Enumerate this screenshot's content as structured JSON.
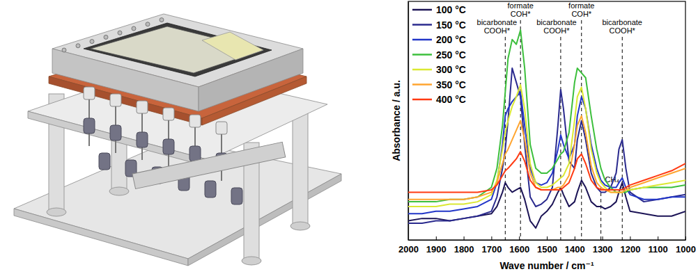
{
  "chart_data": {
    "type": "line",
    "x_label": "Wave number / cm⁻¹",
    "y_label": "Absorbance / a.u.",
    "x": [
      2000,
      1950,
      1900,
      1850,
      1800,
      1750,
      1700,
      1680,
      1660,
      1650,
      1640,
      1625,
      1610,
      1595,
      1580,
      1560,
      1540,
      1520,
      1500,
      1480,
      1460,
      1450,
      1440,
      1420,
      1400,
      1390,
      1375,
      1360,
      1340,
      1320,
      1305,
      1290,
      1270,
      1250,
      1240,
      1228,
      1215,
      1200,
      1150,
      1100,
      1050,
      1000
    ],
    "xlim": [
      2000,
      1000
    ],
    "xticks": [
      2000,
      1900,
      1800,
      1700,
      1600,
      1500,
      1400,
      1300,
      1200,
      1100,
      1000
    ],
    "ylim": [
      0,
      1
    ],
    "tick_labels": "x",
    "grid": false,
    "legend": "upper left",
    "series": [
      {
        "name": "100 °C",
        "color": "#1c1456",
        "values": [
          0.08,
          0.09,
          0.09,
          0.08,
          0.09,
          0.1,
          0.11,
          0.14,
          0.2,
          0.24,
          0.22,
          0.2,
          0.21,
          0.22,
          0.17,
          0.08,
          0.05,
          0.1,
          0.12,
          0.15,
          0.2,
          0.22,
          0.19,
          0.14,
          0.16,
          0.2,
          0.25,
          0.22,
          0.16,
          0.14,
          0.14,
          0.13,
          0.14,
          0.16,
          0.2,
          0.24,
          0.18,
          0.12,
          0.11,
          0.1,
          0.1,
          0.12
        ]
      },
      {
        "name": "150 °C",
        "color": "#2a2a8e",
        "values": [
          0.07,
          0.07,
          0.08,
          0.08,
          0.09,
          0.1,
          0.12,
          0.18,
          0.3,
          0.38,
          0.5,
          0.72,
          0.66,
          0.6,
          0.4,
          0.18,
          0.14,
          0.15,
          0.17,
          0.22,
          0.48,
          0.63,
          0.55,
          0.33,
          0.3,
          0.42,
          0.5,
          0.42,
          0.28,
          0.22,
          0.2,
          0.2,
          0.22,
          0.28,
          0.38,
          0.42,
          0.3,
          0.2,
          0.16,
          0.17,
          0.18,
          0.19
        ]
      },
      {
        "name": "200 °C",
        "color": "#2236c8",
        "values": [
          0.11,
          0.11,
          0.12,
          0.12,
          0.13,
          0.14,
          0.17,
          0.24,
          0.4,
          0.52,
          0.55,
          0.58,
          0.6,
          0.62,
          0.48,
          0.3,
          0.24,
          0.23,
          0.24,
          0.28,
          0.38,
          0.44,
          0.4,
          0.34,
          0.4,
          0.52,
          0.6,
          0.55,
          0.4,
          0.3,
          0.25,
          0.23,
          0.22,
          0.22,
          0.24,
          0.26,
          0.22,
          0.19,
          0.17,
          0.17,
          0.18,
          0.18
        ]
      },
      {
        "name": "250 °C",
        "color": "#3cbf3c",
        "values": [
          0.16,
          0.16,
          0.16,
          0.17,
          0.17,
          0.18,
          0.22,
          0.3,
          0.48,
          0.62,
          0.76,
          0.84,
          0.82,
          0.88,
          0.72,
          0.4,
          0.3,
          0.28,
          0.28,
          0.3,
          0.34,
          0.36,
          0.37,
          0.45,
          0.66,
          0.72,
          0.7,
          0.68,
          0.52,
          0.38,
          0.3,
          0.25,
          0.22,
          0.2,
          0.2,
          0.2,
          0.2,
          0.21,
          0.22,
          0.22,
          0.22,
          0.23
        ]
      },
      {
        "name": "300 °C",
        "color": "#dbe832",
        "values": [
          0.14,
          0.14,
          0.14,
          0.15,
          0.15,
          0.16,
          0.19,
          0.25,
          0.38,
          0.45,
          0.5,
          0.56,
          0.6,
          0.65,
          0.55,
          0.32,
          0.24,
          0.22,
          0.22,
          0.23,
          0.25,
          0.26,
          0.27,
          0.32,
          0.5,
          0.6,
          0.64,
          0.55,
          0.38,
          0.28,
          0.24,
          0.22,
          0.2,
          0.2,
          0.2,
          0.2,
          0.21,
          0.21,
          0.22,
          0.23,
          0.24,
          0.25
        ]
      },
      {
        "name": "350 °C",
        "color": "#ffa530",
        "values": [
          0.17,
          0.17,
          0.17,
          0.17,
          0.17,
          0.18,
          0.2,
          0.24,
          0.32,
          0.36,
          0.38,
          0.42,
          0.46,
          0.5,
          0.42,
          0.28,
          0.22,
          0.21,
          0.21,
          0.21,
          0.22,
          0.22,
          0.23,
          0.27,
          0.4,
          0.48,
          0.52,
          0.45,
          0.31,
          0.24,
          0.22,
          0.21,
          0.2,
          0.2,
          0.2,
          0.2,
          0.21,
          0.22,
          0.24,
          0.26,
          0.28,
          0.3
        ]
      },
      {
        "name": "400 °C",
        "color": "#ff3a12",
        "values": [
          0.2,
          0.2,
          0.2,
          0.2,
          0.2,
          0.2,
          0.21,
          0.23,
          0.27,
          0.29,
          0.3,
          0.32,
          0.34,
          0.37,
          0.33,
          0.25,
          0.22,
          0.21,
          0.21,
          0.21,
          0.21,
          0.21,
          0.22,
          0.24,
          0.3,
          0.34,
          0.36,
          0.32,
          0.25,
          0.22,
          0.21,
          0.21,
          0.21,
          0.21,
          0.21,
          0.21,
          0.22,
          0.23,
          0.25,
          0.27,
          0.29,
          0.32
        ]
      }
    ],
    "annotations": [
      {
        "x": 1650,
        "lines": [
          "bicarbonate",
          "COOH*"
        ]
      },
      {
        "x": 1595,
        "lines": [
          "formate",
          "COH*"
        ]
      },
      {
        "x": 1450,
        "lines": [
          "bicarbonate",
          "COOH*"
        ]
      },
      {
        "x": 1375,
        "lines": [
          "formate",
          "COH*"
        ]
      },
      {
        "x": 1305,
        "lines": [
          "CH₄"
        ]
      },
      {
        "x": 1228,
        "lines": [
          "bicarbonate",
          "COOH*"
        ]
      }
    ]
  }
}
